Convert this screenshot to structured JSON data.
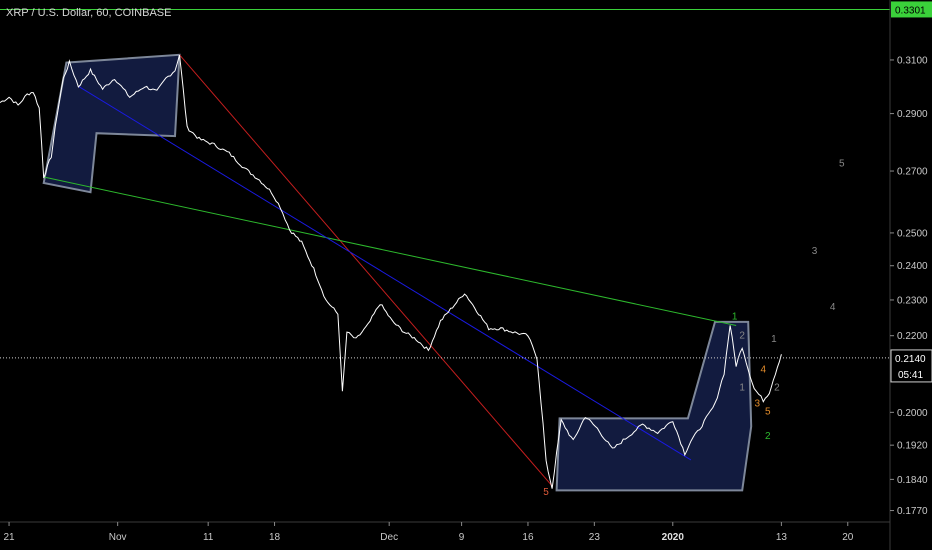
{
  "header": {
    "title": "XRP / U.S. Dollar, 60, COINBASE"
  },
  "chart_data": {
    "type": "line",
    "title": "XRP / U.S. Dollar, 60, COINBASE",
    "ylim": [
      0.1745,
      0.334
    ],
    "xlim": [
      0,
      29.5
    ],
    "y_ticks": [
      0.31,
      0.29,
      0.27,
      0.25,
      0.24,
      0.23,
      0.22,
      0.2,
      0.192,
      0.184,
      0.177
    ],
    "y_tick_labels": [
      "0.3100",
      "0.2900",
      "0.2700",
      "0.2500",
      "0.2400",
      "0.2300",
      "0.2200",
      "0.2000",
      "0.1920",
      "0.1840",
      "0.1770"
    ],
    "x_ticks": [
      {
        "pos": 0.3,
        "label": "21",
        "bold": false
      },
      {
        "pos": 3.9,
        "label": "Nov",
        "bold": false
      },
      {
        "pos": 6.9,
        "label": "11",
        "bold": false
      },
      {
        "pos": 9.1,
        "label": "18",
        "bold": false
      },
      {
        "pos": 12.9,
        "label": "Dec",
        "bold": false
      },
      {
        "pos": 15.3,
        "label": "9",
        "bold": false
      },
      {
        "pos": 17.5,
        "label": "16",
        "bold": false
      },
      {
        "pos": 19.7,
        "label": "23",
        "bold": false
      },
      {
        "pos": 22.3,
        "label": "2020",
        "bold": true
      },
      {
        "pos": 25.9,
        "label": "13",
        "bold": false
      },
      {
        "pos": 28.1,
        "label": "20",
        "bold": false
      }
    ],
    "series": [
      {
        "name": "price",
        "color": "#ffffff",
        "points": [
          [
            0.0,
            0.294
          ],
          [
            0.3,
            0.296
          ],
          [
            0.6,
            0.293
          ],
          [
            0.9,
            0.297
          ],
          [
            1.1,
            0.298
          ],
          [
            1.3,
            0.292
          ],
          [
            1.45,
            0.268
          ],
          [
            1.7,
            0.275
          ],
          [
            1.9,
            0.29
          ],
          [
            2.1,
            0.303
          ],
          [
            2.3,
            0.309
          ],
          [
            2.6,
            0.3
          ],
          [
            3.0,
            0.306
          ],
          [
            3.4,
            0.299
          ],
          [
            3.8,
            0.303
          ],
          [
            4.3,
            0.296
          ],
          [
            4.8,
            0.3
          ],
          [
            5.2,
            0.298
          ],
          [
            5.5,
            0.303
          ],
          [
            5.8,
            0.306
          ],
          [
            5.95,
            0.312
          ],
          [
            6.2,
            0.285
          ],
          [
            6.6,
            0.281
          ],
          [
            7.1,
            0.279
          ],
          [
            7.6,
            0.276
          ],
          [
            8.1,
            0.271
          ],
          [
            8.6,
            0.267
          ],
          [
            9.0,
            0.263
          ],
          [
            9.3,
            0.258
          ],
          [
            9.6,
            0.251
          ],
          [
            10.0,
            0.247
          ],
          [
            10.4,
            0.239
          ],
          [
            10.8,
            0.23
          ],
          [
            11.2,
            0.226
          ],
          [
            11.35,
            0.205
          ],
          [
            11.5,
            0.221
          ],
          [
            11.8,
            0.219
          ],
          [
            12.2,
            0.223
          ],
          [
            12.6,
            0.229
          ],
          [
            13.0,
            0.224
          ],
          [
            13.4,
            0.221
          ],
          [
            13.8,
            0.219
          ],
          [
            14.2,
            0.216
          ],
          [
            14.6,
            0.224
          ],
          [
            15.0,
            0.228
          ],
          [
            15.4,
            0.232
          ],
          [
            15.8,
            0.227
          ],
          [
            16.2,
            0.222
          ],
          [
            16.6,
            0.222
          ],
          [
            17.0,
            0.221
          ],
          [
            17.5,
            0.22
          ],
          [
            17.8,
            0.214
          ],
          [
            18.0,
            0.197
          ],
          [
            18.1,
            0.188
          ],
          [
            18.3,
            0.182
          ],
          [
            18.6,
            0.198
          ],
          [
            19.0,
            0.193
          ],
          [
            19.4,
            0.199
          ],
          [
            19.8,
            0.196
          ],
          [
            20.3,
            0.191
          ],
          [
            20.8,
            0.194
          ],
          [
            21.3,
            0.197
          ],
          [
            21.8,
            0.195
          ],
          [
            22.3,
            0.198
          ],
          [
            22.7,
            0.19
          ],
          [
            22.9,
            0.193
          ],
          [
            23.2,
            0.196
          ],
          [
            23.7,
            0.202
          ],
          [
            24.0,
            0.21
          ],
          [
            24.2,
            0.223
          ],
          [
            24.4,
            0.212
          ],
          [
            24.6,
            0.217
          ],
          [
            24.8,
            0.211
          ],
          [
            25.0,
            0.206
          ],
          [
            25.3,
            0.203
          ],
          [
            25.5,
            0.205
          ],
          [
            25.7,
            0.21
          ],
          [
            25.9,
            0.215
          ]
        ]
      }
    ],
    "current_price": {
      "value": 0.214,
      "label": "0.2140",
      "timer": "05:41"
    },
    "top_level": {
      "value": 0.3301,
      "label": "0.3301"
    },
    "shapes": [
      {
        "type": "polygon",
        "name": "accumulation-box-left",
        "points": [
          [
            1.45,
            0.266
          ],
          [
            2.2,
            0.309
          ],
          [
            5.95,
            0.312
          ],
          [
            5.8,
            0.282
          ],
          [
            3.2,
            0.283
          ],
          [
            3.0,
            0.263
          ]
        ]
      },
      {
        "type": "polygon",
        "name": "accumulation-box-right",
        "points": [
          [
            18.45,
            0.1815
          ],
          [
            18.55,
            0.1985
          ],
          [
            22.8,
            0.1985
          ],
          [
            23.7,
            0.2238
          ],
          [
            24.8,
            0.2238
          ],
          [
            24.9,
            0.1965
          ],
          [
            24.6,
            0.1815
          ]
        ]
      }
    ],
    "lines": [
      {
        "name": "red-trendline",
        "color": "#c41e1e",
        "from": [
          5.95,
          0.312
        ],
        "to": [
          18.3,
          0.1825
        ]
      },
      {
        "name": "green-trendline",
        "color": "#2db82d",
        "from": [
          1.45,
          0.268
        ],
        "to": [
          24.4,
          0.2228
        ]
      },
      {
        "name": "blue-trendline",
        "color": "#1a1ae0",
        "from": [
          2.6,
          0.3
        ],
        "to": [
          22.9,
          0.1885
        ]
      }
    ],
    "wave_labels": [
      {
        "text": "5",
        "x": 18.1,
        "y": 0.1805,
        "color": "#e05a3a"
      },
      {
        "text": "1",
        "x": 24.35,
        "y": 0.2245,
        "color": "#2db82d"
      },
      {
        "text": "2",
        "x": 24.6,
        "y": 0.2192,
        "color": "#888888"
      },
      {
        "text": "1",
        "x": 24.6,
        "y": 0.2055,
        "color": "#888888"
      },
      {
        "text": "4",
        "x": 25.3,
        "y": 0.2102,
        "color": "#e08a2a"
      },
      {
        "text": "3",
        "x": 25.1,
        "y": 0.2015,
        "color": "#e08a2a"
      },
      {
        "text": "5",
        "x": 25.45,
        "y": 0.1995,
        "color": "#e08a2a"
      },
      {
        "text": "2",
        "x": 25.45,
        "y": 0.1935,
        "color": "#2db82d"
      },
      {
        "text": "2",
        "x": 25.75,
        "y": 0.2055,
        "color": "#888888"
      },
      {
        "text": "1",
        "x": 25.65,
        "y": 0.2183,
        "color": "#888888"
      },
      {
        "text": "4",
        "x": 27.6,
        "y": 0.2272,
        "color": "#888888"
      },
      {
        "text": "3",
        "x": 27.0,
        "y": 0.2435,
        "color": "#888888"
      },
      {
        "text": "5",
        "x": 27.9,
        "y": 0.2715,
        "color": "#888888"
      }
    ]
  }
}
